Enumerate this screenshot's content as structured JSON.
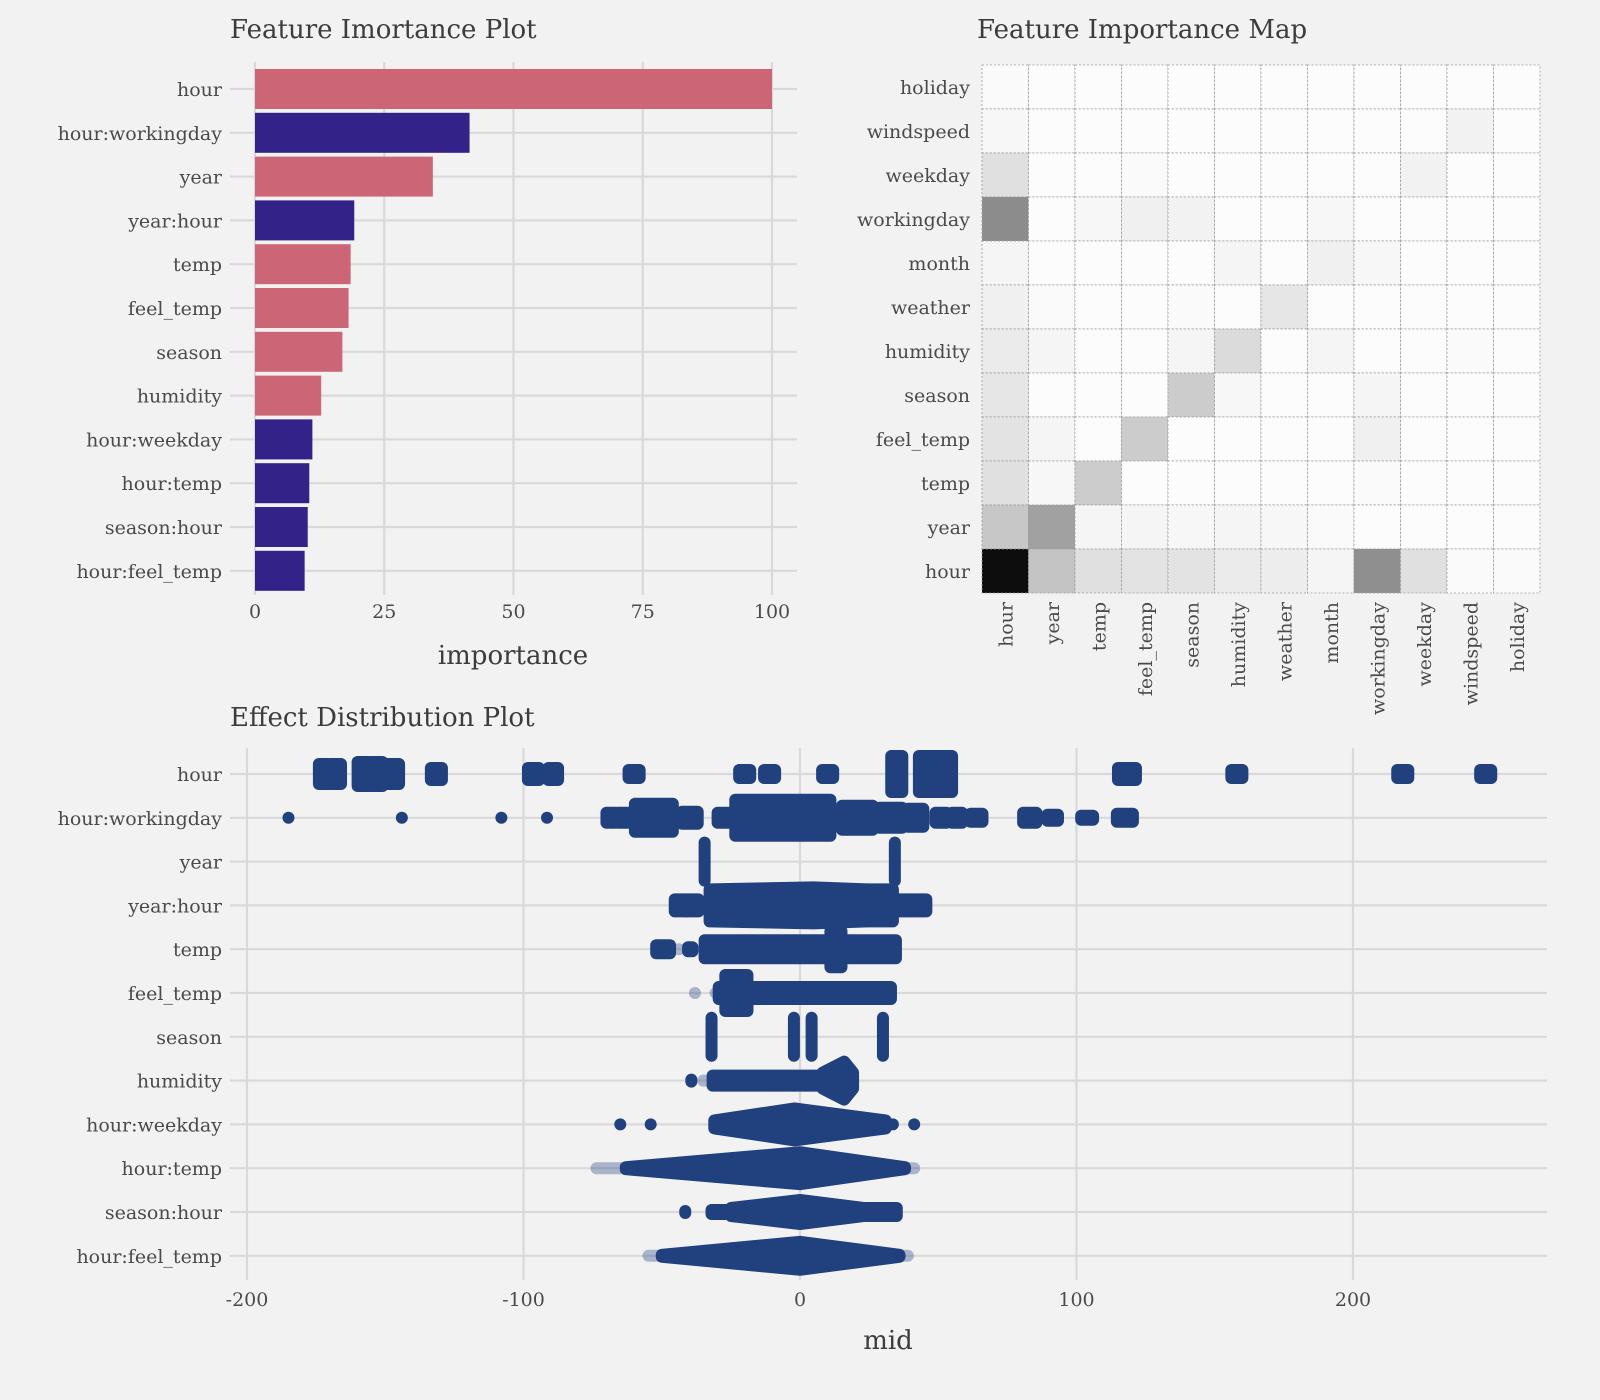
{
  "chart_data": [
    {
      "type": "bar",
      "title": "Feature Imortance Plot",
      "xlabel": "importance",
      "ylabel": "",
      "orientation": "horizontal",
      "xlim": [
        -5,
        105
      ],
      "xticks": [
        "0",
        "25",
        "50",
        "75",
        "100"
      ],
      "grid": true,
      "categories": [
        "hour",
        "hour:workingday",
        "year",
        "year:hour",
        "temp",
        "feel_temp",
        "season",
        "humidity",
        "hour:weekday",
        "hour:temp",
        "season:hour",
        "hour:feel_temp"
      ],
      "values": [
        100,
        41.5,
        34.4,
        19.2,
        18.5,
        18.1,
        16.9,
        12.8,
        11.1,
        10.5,
        10.2,
        9.6
      ],
      "kinds": [
        "main",
        "interaction",
        "main",
        "interaction",
        "main",
        "main",
        "main",
        "main",
        "interaction",
        "interaction",
        "interaction",
        "interaction"
      ],
      "colors": {
        "main": "#cc6677",
        "interaction": "#332288"
      }
    },
    {
      "type": "heatmap",
      "title": "Feature Importance Map",
      "colormap": "gray-reversed",
      "rows": [
        "holiday",
        "windspeed",
        "weekday",
        "workingday",
        "month",
        "weather",
        "humidity",
        "season",
        "feel_temp",
        "temp",
        "year",
        "hour"
      ],
      "columns": [
        "hour",
        "year",
        "temp",
        "feel_temp",
        "season",
        "humidity",
        "weather",
        "month",
        "workingday",
        "weekday",
        "windspeed",
        "holiday"
      ],
      "values": [
        [
          0.02,
          0,
          0,
          0,
          0,
          0,
          0,
          0,
          0,
          0,
          0,
          0.01
        ],
        [
          0.03,
          0,
          0,
          0,
          0,
          0.01,
          0,
          0,
          0.01,
          0,
          0.05,
          0
        ],
        [
          0.12,
          0,
          0.01,
          0.02,
          0.01,
          0,
          0.01,
          0,
          0,
          0.05,
          0,
          0
        ],
        [
          0.45,
          0,
          0.03,
          0.06,
          0.05,
          0,
          0.01,
          0.03,
          0,
          0,
          0,
          0
        ],
        [
          0.04,
          0.01,
          0.01,
          0.01,
          0.01,
          0.04,
          0.01,
          0.06,
          0.03,
          0.01,
          0.01,
          0.01
        ],
        [
          0.06,
          0.02,
          0.01,
          0.01,
          0.02,
          0,
          0.1,
          0.01,
          0.01,
          0.01,
          0.01,
          0
        ],
        [
          0.08,
          0.04,
          0.01,
          0,
          0.04,
          0.14,
          0,
          0.04,
          0.01,
          0.01,
          0.02,
          0
        ],
        [
          0.1,
          0.01,
          0,
          0,
          0.2,
          0.03,
          0.01,
          0.01,
          0.04,
          0.01,
          0.01,
          0
        ],
        [
          0.11,
          0.04,
          0,
          0.2,
          0,
          0,
          0.01,
          0.01,
          0.06,
          0.01,
          0.01,
          0
        ],
        [
          0.12,
          0.03,
          0.2,
          0,
          0.01,
          0.01,
          0.01,
          0.01,
          0.02,
          0.01,
          0,
          0
        ],
        [
          0.22,
          0.37,
          0.04,
          0.04,
          0.03,
          0.04,
          0.03,
          0.02,
          0.01,
          0.01,
          0,
          0
        ],
        [
          0.95,
          0.23,
          0.12,
          0.11,
          0.11,
          0.08,
          0.07,
          0.04,
          0.44,
          0.12,
          0.02,
          0.02
        ]
      ]
    },
    {
      "type": "scatter",
      "title": "Effect Distribution Plot",
      "xlabel": "mid",
      "ylabel": "",
      "xlim": [
        -206,
        270
      ],
      "xticks": [
        -200,
        -100,
        0,
        100,
        200
      ],
      "xtick_labels": [
        "-200",
        "-100",
        "0",
        "100",
        "200"
      ],
      "grid": true,
      "point_color": "#21407e",
      "series": [
        {
          "feature": "hour",
          "clusters": [
            {
              "from": -174,
              "to": -171,
              "density": 6
            },
            {
              "from": -170,
              "to": -166,
              "density": 6
            },
            {
              "from": -160,
              "to": -156,
              "density": 7
            },
            {
              "from": -155,
              "to": -151,
              "density": 7
            },
            {
              "from": -149,
              "to": -145,
              "density": 6
            },
            {
              "from": -133.5,
              "to": -129.5,
              "density": 4
            },
            {
              "from": -98.4,
              "to": -94.4,
              "density": 4
            },
            {
              "from": -91,
              "to": -87.5,
              "density": 4
            },
            {
              "from": -62,
              "to": -58,
              "density": 3
            },
            {
              "from": -22,
              "to": -18,
              "density": 3
            },
            {
              "from": -13,
              "to": -9,
              "density": 3
            },
            {
              "from": 8,
              "to": 12,
              "density": 3
            },
            {
              "from": 33,
              "to": 37,
              "density": 10
            },
            {
              "from": 43,
              "to": 55,
              "density": 10
            },
            {
              "from": 115,
              "to": 121.5,
              "density": 4
            },
            {
              "from": 156,
              "to": 160,
              "density": 3
            },
            {
              "from": 216,
              "to": 220,
              "density": 3
            },
            {
              "from": 246,
              "to": 250,
              "density": 3
            }
          ]
        },
        {
          "feature": "hour:workingday",
          "clusters": [
            {
              "from": -185,
              "to": -185,
              "density": 1
            },
            {
              "from": -144,
              "to": -144,
              "density": 1
            },
            {
              "from": -108,
              "to": -108,
              "density": 1
            },
            {
              "from": -91.5,
              "to": -91.5,
              "density": 1
            },
            {
              "from": -70,
              "to": -67,
              "density": 3.5
            },
            {
              "from": -66,
              "to": -61.5,
              "density": 3.5
            },
            {
              "from": -59.7,
              "to": -46,
              "density": 8
            },
            {
              "from": -42.7,
              "to": -37,
              "density": 4
            },
            {
              "from": -29.8,
              "to": -25.6,
              "density": 3.5
            },
            {
              "from": -23.4,
              "to": 11,
              "density": 10
            },
            {
              "from": 15.2,
              "to": 26.3,
              "density": 7
            },
            {
              "from": 28.7,
              "to": 36.9,
              "density": 6
            },
            {
              "from": 39,
              "to": 44.6,
              "density": 5.5
            },
            {
              "from": 49,
              "to": 53,
              "density": 3.5
            },
            {
              "from": 55,
              "to": 58.6,
              "density": 3.5
            },
            {
              "from": 61.7,
              "to": 66,
              "density": 3
            },
            {
              "from": 80.7,
              "to": 85.5,
              "density": 3.5
            },
            {
              "from": 89.5,
              "to": 93.3,
              "density": 2.5
            },
            {
              "from": 101.7,
              "to": 106,
              "density": 2
            },
            {
              "from": 114.6,
              "to": 120.4,
              "density": 3
            }
          ]
        },
        {
          "feature": "year",
          "clusters": [
            {
              "from": -34.5,
              "to": -34.5,
              "density": 10.5
            },
            {
              "from": 34.3,
              "to": 34.3,
              "density": 10.5
            }
          ]
        },
        {
          "feature": "year:hour",
          "clusters": [
            {
              "from": -45.3,
              "to": -41.1,
              "density": 4
            },
            {
              "from": -41,
              "to": -36.7,
              "density": 4
            },
            {
              "from": -32.7,
              "to": 24.1,
              "density": 9,
              "peak_at": 5,
              "peak_density": 10
            },
            {
              "from": 24,
              "to": 33.6,
              "density": 9
            },
            {
              "from": 36,
              "to": 45.7,
              "density": 4
            }
          ]
        },
        {
          "feature": "temp",
          "clusters": [
            {
              "from": -52,
              "to": -47,
              "density": 3
            },
            {
              "from": -43.8,
              "to": -43.8,
              "density": 1,
              "faded": true
            },
            {
              "from": -40.5,
              "to": -38.9,
              "density": 2
            },
            {
              "from": -34.5,
              "to": 34.7,
              "density": 5.5
            },
            {
              "from": 11,
              "to": 15,
              "density": 10
            }
          ]
        },
        {
          "feature": "feel_temp",
          "clusters": [
            {
              "from": -38,
              "to": -38,
              "density": 1,
              "faded": true
            },
            {
              "from": -30.5,
              "to": -30.5,
              "density": 1,
              "faded": true
            },
            {
              "from": -29.4,
              "to": 32.9,
              "density": 4
            },
            {
              "from": -27,
              "to": -19,
              "density": 10
            }
          ]
        },
        {
          "feature": "season",
          "clusters": [
            {
              "from": -32,
              "to": -32,
              "density": 10.5
            },
            {
              "from": -2.2,
              "to": -2.2,
              "density": 10.5
            },
            {
              "from": 4.2,
              "to": 4.2,
              "density": 10.5
            },
            {
              "from": 30,
              "to": 30,
              "density": 10.5
            }
          ]
        },
        {
          "feature": "humidity",
          "clusters": [
            {
              "from": -39.3,
              "to": -39.3,
              "density": 1.5
            },
            {
              "from": -35,
              "to": -33,
              "density": 1,
              "faded": true
            },
            {
              "from": -31.6,
              "to": 7,
              "density": 3.5
            },
            {
              "from": 8.2,
              "to": 19.2,
              "density": 5,
              "peak_at": 16,
              "peak_density": 10.5
            }
          ]
        },
        {
          "feature": "hour:weekday",
          "clusters": [
            {
              "from": -65,
              "to": -65,
              "density": 1
            },
            {
              "from": -54,
              "to": -54,
              "density": 1
            },
            {
              "from": -31,
              "to": 31,
              "density": 3,
              "peak_at": -2,
              "peak_density": 9
            },
            {
              "from": 33.6,
              "to": 33.6,
              "density": 1
            },
            {
              "from": 41.3,
              "to": 41.3,
              "density": 1
            }
          ]
        },
        {
          "feature": "hour:temp",
          "clusters": [
            {
              "from": -73.6,
              "to": -64,
              "density": 1,
              "faded": true
            },
            {
              "from": -63,
              "to": 38,
              "density": 1.5,
              "peak_at": 0,
              "peak_density": 9
            },
            {
              "from": 38,
              "to": 41.3,
              "density": 1,
              "faded": true
            }
          ]
        },
        {
          "feature": "season:hour",
          "clusters": [
            {
              "from": -41.5,
              "to": -41.5,
              "density": 1.5
            },
            {
              "from": -32,
              "to": -27,
              "density": 2
            },
            {
              "from": -25,
              "to": 23,
              "density": 3,
              "peak_at": 0,
              "peak_density": 7
            },
            {
              "from": 23,
              "to": 35,
              "density": 3
            }
          ]
        },
        {
          "feature": "hour:feel_temp",
          "clusters": [
            {
              "from": -54.8,
              "to": -50,
              "density": 1,
              "faded": true
            },
            {
              "from": -50,
              "to": 36,
              "density": 1.5,
              "peak_at": 0,
              "peak_density": 8
            },
            {
              "from": 36,
              "to": 39,
              "density": 1,
              "faded": true
            }
          ]
        }
      ]
    }
  ]
}
